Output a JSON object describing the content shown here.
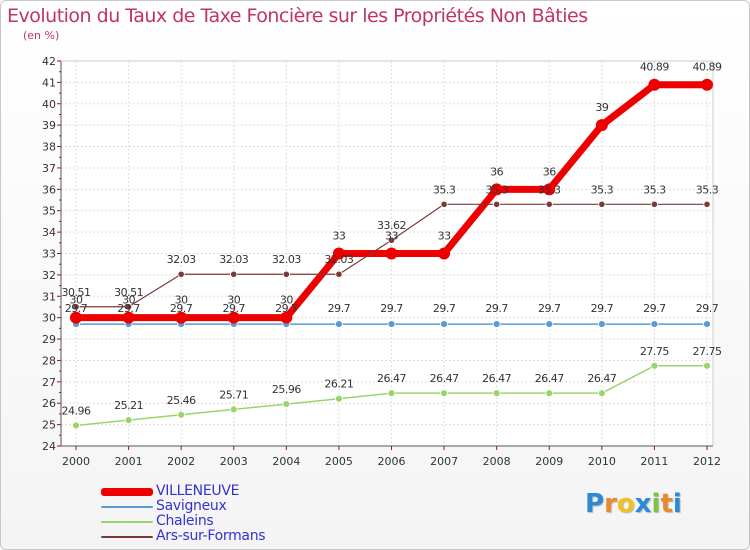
{
  "chart_data": {
    "type": "line",
    "title": "Evolution du Taux de Taxe Foncière sur les Propriétés Non Bâties",
    "subtitle": "(en %)",
    "xlabel": "",
    "ylabel": "",
    "x": [
      "2000",
      "2001",
      "2002",
      "2003",
      "2004",
      "2005",
      "2006",
      "2007",
      "2008",
      "2009",
      "2010",
      "2011",
      "2012"
    ],
    "ylim": [
      24,
      42
    ],
    "yticks": [
      24,
      25,
      26,
      27,
      28,
      29,
      30,
      31,
      32,
      33,
      34,
      35,
      36,
      37,
      38,
      39,
      40,
      41,
      42
    ],
    "grid": true,
    "series": [
      {
        "name": "VILLENEUVE",
        "color": "#ee0000",
        "values": [
          30,
          30,
          30,
          30,
          30,
          33,
          33,
          33,
          36,
          36,
          39,
          40.89,
          40.89
        ],
        "labels": [
          "30",
          "30",
          "30",
          "30",
          "30",
          "33",
          "33",
          "33",
          "36",
          "36",
          "39",
          "40.89",
          "40.89"
        ]
      },
      {
        "name": "Savigneux",
        "color": "#5b9bd5",
        "values": [
          29.7,
          29.7,
          29.7,
          29.7,
          29.7,
          29.7,
          29.7,
          29.7,
          29.7,
          29.7,
          29.7,
          29.7,
          29.7
        ],
        "labels": [
          "29.7",
          "29.7",
          "29.7",
          "29.7",
          "29.7",
          "29.7",
          "29.7",
          "29.7",
          "29.7",
          "29.7",
          "29.7",
          "29.7",
          "29.7"
        ]
      },
      {
        "name": "Chaleins",
        "color": "#99d56e",
        "values": [
          24.96,
          25.21,
          25.46,
          25.71,
          25.96,
          26.21,
          26.47,
          26.47,
          26.47,
          26.47,
          26.47,
          27.75,
          27.75
        ],
        "labels": [
          "24.96",
          "25.21",
          "25.46",
          "25.71",
          "25.96",
          "26.21",
          "26.47",
          "26.47",
          "26.47",
          "26.47",
          "26.47",
          "27.75",
          "27.75"
        ]
      },
      {
        "name": "Ars-sur-Formans",
        "color": "#7b3a3a",
        "values": [
          30.51,
          30.51,
          32.03,
          32.03,
          32.03,
          32.03,
          33.62,
          35.3,
          35.3,
          35.3,
          35.3,
          35.3,
          35.3
        ],
        "labels": [
          "30.51",
          "30.51",
          "32.03",
          "32.03",
          "32.03",
          "32.03",
          "33.62",
          "35.3",
          "35.3",
          "35.3",
          "35.3",
          "35.3",
          "35.3"
        ]
      }
    ]
  },
  "brand": {
    "text": "Proxiti",
    "letters": [
      "P",
      "r",
      "o",
      "x",
      "i",
      "t",
      "i"
    ],
    "colors": [
      "#2a8ad6",
      "#e8892e",
      "#f0c020",
      "#2a8ad6",
      "#7cc243",
      "#e8892e",
      "#2a8ad6"
    ]
  }
}
